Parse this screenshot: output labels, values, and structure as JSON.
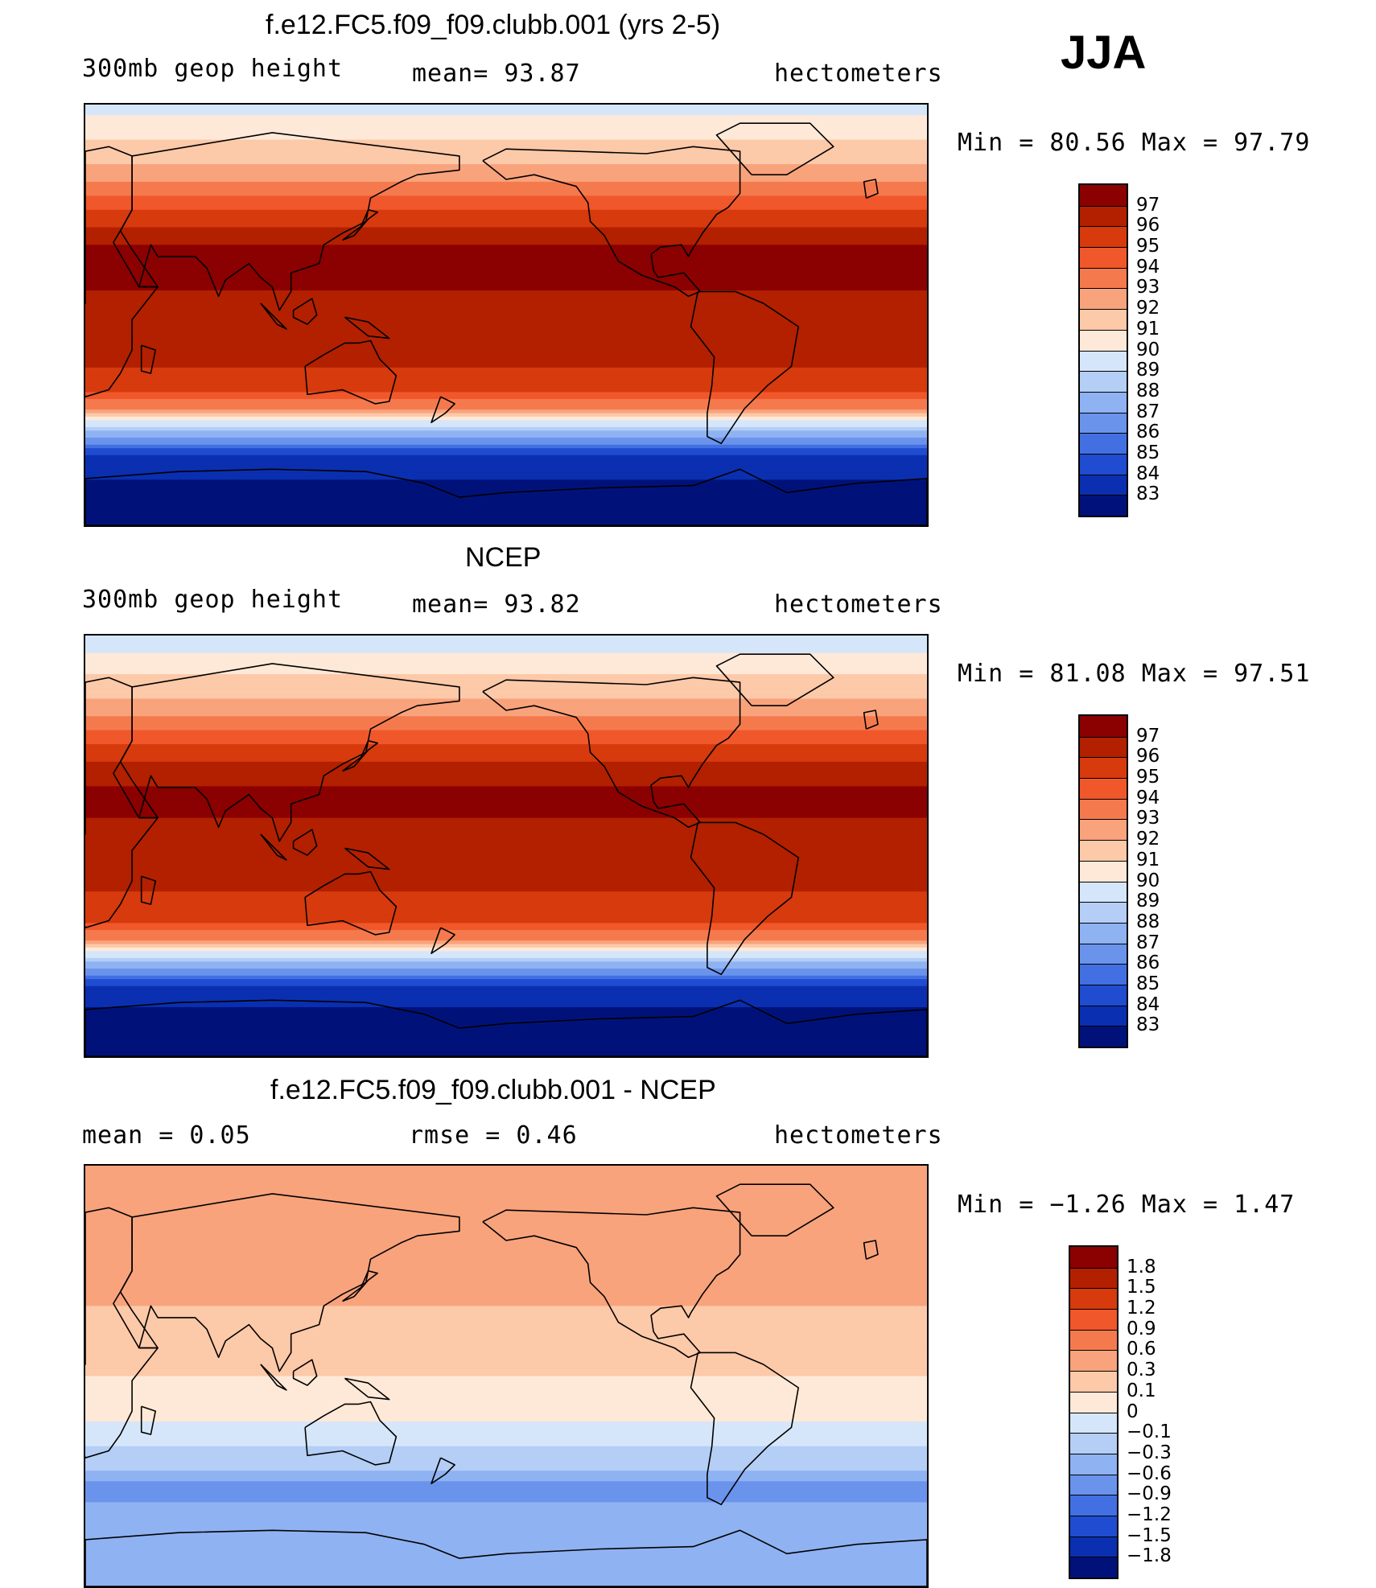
{
  "season": "JJA",
  "coastline_description": "world coastlines",
  "panels": [
    {
      "title": "f.e12.FC5.f09_f09.clubb.001 (yrs 2-5)",
      "left_label": "300mb  geop  height",
      "stat1": "mean=   93.87",
      "units": "hectometers",
      "minmax": "Min  =    80.56  Max  =    97.79",
      "colorbar": {
        "labels": [
          "97",
          "96",
          "95",
          "94",
          "93",
          "92",
          "91",
          "90",
          "89",
          "88",
          "87",
          "86",
          "85",
          "84",
          "83"
        ],
        "colors": [
          "#8B0000",
          "#B22000",
          "#D63A0D",
          "#F0572A",
          "#F47A4E",
          "#F8A37C",
          "#FCC9A9",
          "#FEE9D8",
          "#D6E6FA",
          "#B4CEF6",
          "#8FB2F2",
          "#6A93EC",
          "#4270E2",
          "#1F4CD1",
          "#0A2FB0",
          "#00127A"
        ]
      },
      "chart_data": {
        "type": "heatmap",
        "variable": "300mb geop height",
        "units": "hectometers",
        "mean": 93.87,
        "min": 80.56,
        "max": 97.79,
        "zonal_profile": {
          "lat": [
            90,
            75,
            60,
            45,
            30,
            15,
            0,
            -15,
            -30,
            -40,
            -45,
            -50,
            -55,
            -60,
            -70,
            -90
          ],
          "value": [
            89.5,
            91,
            92.5,
            95,
            97,
            97.3,
            96.3,
            96.2,
            95.8,
            93,
            90,
            88,
            86,
            84,
            83,
            82
          ]
        }
      }
    },
    {
      "title": "NCEP",
      "left_label": "300mb  geop  height",
      "stat1": "mean=   93.82",
      "units": "hectometers",
      "minmax": "Min  =    81.08  Max  =    97.51",
      "colorbar": {
        "labels": [
          "97",
          "96",
          "95",
          "94",
          "93",
          "92",
          "91",
          "90",
          "89",
          "88",
          "87",
          "86",
          "85",
          "84",
          "83"
        ],
        "colors": [
          "#8B0000",
          "#B22000",
          "#D63A0D",
          "#F0572A",
          "#F47A4E",
          "#F8A37C",
          "#FCC9A9",
          "#FEE9D8",
          "#D6E6FA",
          "#B4CEF6",
          "#8FB2F2",
          "#6A93EC",
          "#4270E2",
          "#1F4CD1",
          "#0A2FB0",
          "#00127A"
        ]
      },
      "chart_data": {
        "type": "heatmap",
        "variable": "300mb geop height",
        "units": "hectometers",
        "mean": 93.82,
        "min": 81.08,
        "max": 97.51,
        "zonal_profile": {
          "lat": [
            90,
            75,
            60,
            45,
            30,
            15,
            0,
            -15,
            -30,
            -40,
            -45,
            -50,
            -55,
            -60,
            -70,
            -90
          ],
          "value": [
            89.3,
            90.8,
            92.3,
            94.8,
            96.9,
            97.2,
            96.2,
            96.1,
            95.7,
            93,
            90,
            88,
            86,
            84,
            82.8,
            81.5
          ]
        }
      }
    },
    {
      "title": "f.e12.FC5.f09_f09.clubb.001 - NCEP",
      "left_label": "mean  =      0.05",
      "stat1": "rmse  =     0.46",
      "units": "hectometers",
      "minmax": "Min  =    −1.26  Max  =      1.47",
      "colorbar": {
        "labels": [
          "1.8",
          "1.5",
          "1.2",
          "0.9",
          "0.6",
          "0.3",
          "0.1",
          "0",
          "−0.1",
          "−0.3",
          "−0.6",
          "−0.9",
          "−1.2",
          "−1.5",
          "−1.8"
        ],
        "colors": [
          "#8B0000",
          "#B22000",
          "#D63A0D",
          "#F0572A",
          "#F47A4E",
          "#F8A37C",
          "#FCC9A9",
          "#FEE9D8",
          "#D6E6FA",
          "#B4CEF6",
          "#8FB2F2",
          "#6A93EC",
          "#4270E2",
          "#1F4CD1",
          "#0A2FB0",
          "#00127A"
        ]
      },
      "chart_data": {
        "type": "heatmap",
        "variable": "300mb geop height difference",
        "units": "hectometers",
        "mean": 0.05,
        "rmse": 0.46,
        "min": -1.26,
        "max": 1.47,
        "zonal_profile": {
          "lat": [
            90,
            75,
            60,
            45,
            30,
            15,
            0,
            -15,
            -30,
            -40,
            -45,
            -50,
            -55,
            -60,
            -70,
            -90
          ],
          "value": [
            0.4,
            0.6,
            0.5,
            0.5,
            0.3,
            0.1,
            0.1,
            0.05,
            -0.1,
            -0.3,
            -0.6,
            -0.8,
            -0.5,
            -0.3,
            -0.5,
            -0.4
          ]
        }
      }
    }
  ]
}
